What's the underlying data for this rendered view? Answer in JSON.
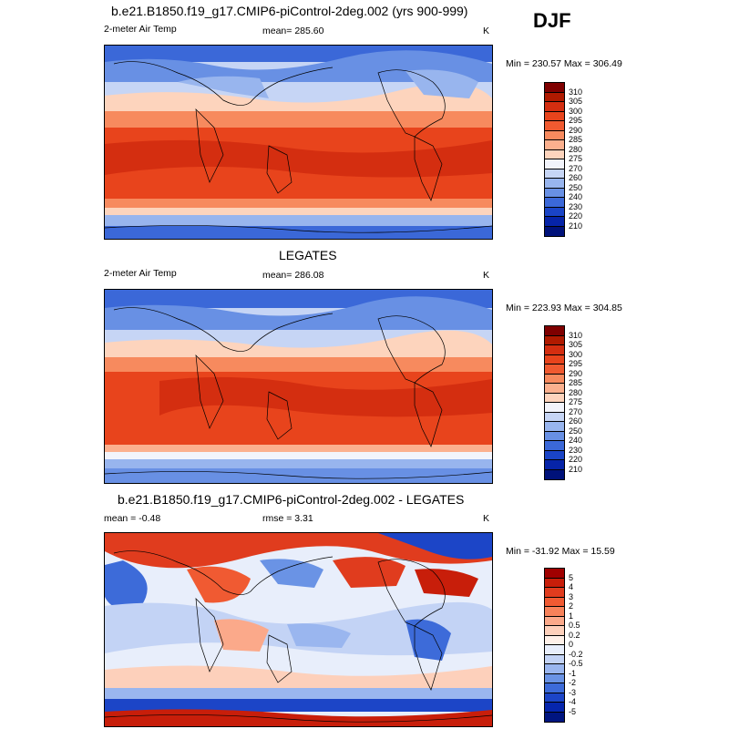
{
  "season": "DJF",
  "panels": [
    {
      "title": "b.e21.B1850.f19_g17.CMIP6-piControl-2deg.002 (yrs 900-999)",
      "left_label": "2-meter Air Temp",
      "mid_label": "mean= 285.60",
      "units": "K",
      "minmax": "Min = 230.57 Max = 306.49",
      "colorbar": {
        "labels": [
          "310",
          "305",
          "300",
          "295",
          "290",
          "285",
          "280",
          "275",
          "270",
          "260",
          "250",
          "240",
          "230",
          "220",
          "210"
        ],
        "colors": [
          "#7f0000",
          "#b01a00",
          "#d42e10",
          "#e8441c",
          "#f05a30",
          "#f78a5e",
          "#fbb08e",
          "#fdd4bd",
          "#f2f4fb",
          "#c6d5f5",
          "#98b5ee",
          "#6890e4",
          "#3b68d8",
          "#1a44c6",
          "#0624a8",
          "#00127a"
        ]
      }
    },
    {
      "title": "LEGATES",
      "left_label": "2-meter Air Temp",
      "mid_label": "mean= 286.08",
      "units": "K",
      "minmax": "Min = 223.93 Max = 304.85",
      "colorbar": {
        "labels": [
          "310",
          "305",
          "300",
          "295",
          "290",
          "285",
          "280",
          "275",
          "270",
          "260",
          "250",
          "240",
          "230",
          "220",
          "210"
        ],
        "colors": [
          "#7f0000",
          "#b01a00",
          "#d42e10",
          "#e8441c",
          "#f05a30",
          "#f78a5e",
          "#fbb08e",
          "#fdd4bd",
          "#f2f4fb",
          "#c6d5f5",
          "#98b5ee",
          "#6890e4",
          "#3b68d8",
          "#1a44c6",
          "#0624a8",
          "#00127a"
        ]
      }
    },
    {
      "title": "b.e21.B1850.f19_g17.CMIP6-piControl-2deg.002 - LEGATES",
      "left_label": "mean =  -0.48",
      "mid_label": "rmse =   3.31",
      "units": "K",
      "minmax": "Min = -31.92 Max =  15.59",
      "colorbar": {
        "labels": [
          "5",
          "4",
          "3",
          "2",
          "1",
          "0.5",
          "0.2",
          "0",
          "-0.2",
          "-0.5",
          "-1",
          "-2",
          "-3",
          "-4",
          "-5"
        ],
        "colors": [
          "#a00000",
          "#c81e0a",
          "#e03c1e",
          "#f05a32",
          "#f7825a",
          "#fba98a",
          "#fdd0bb",
          "#fef0e8",
          "#e8eefb",
          "#c3d3f5",
          "#9ab6ef",
          "#6a93e5",
          "#3d6bd9",
          "#1c45c7",
          "#0626ad",
          "#001580"
        ]
      }
    }
  ]
}
